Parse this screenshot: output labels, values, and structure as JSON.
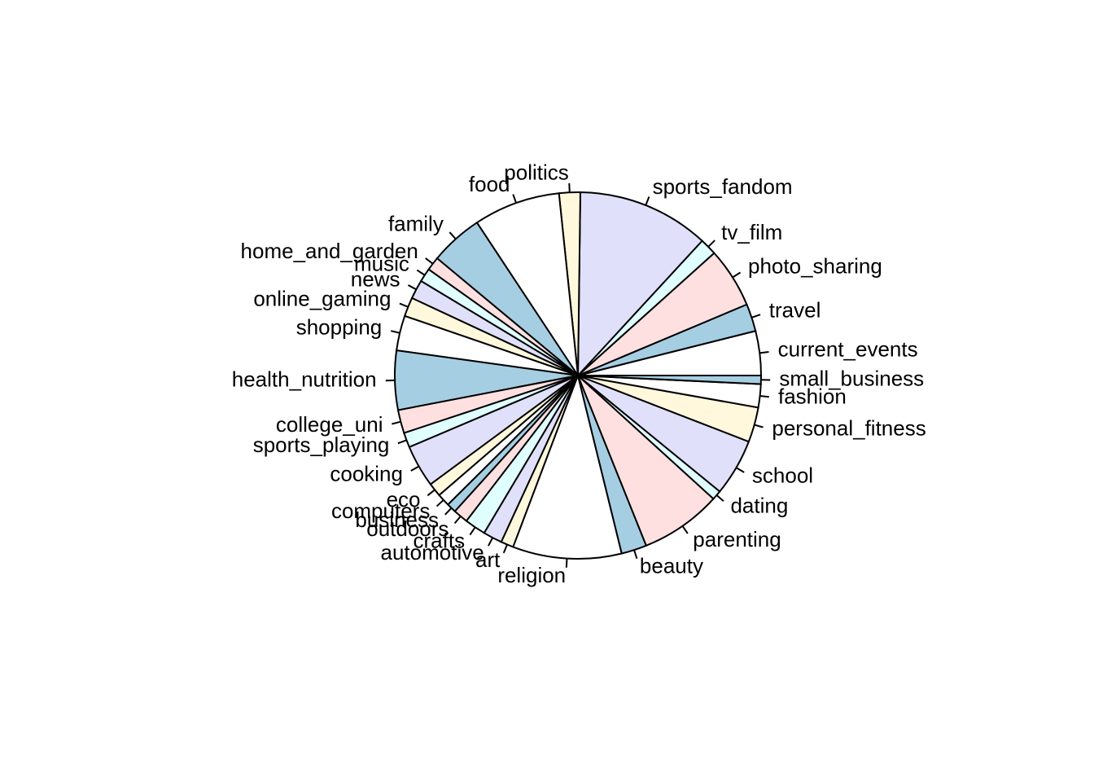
{
  "chart_data": {
    "type": "pie",
    "start_angle_deg": 0,
    "direction": "counterclockwise",
    "colors": [
      "#ffffff",
      "#a6cee3",
      "#fee0e0",
      "#e0ffff",
      "#e0e0fa",
      "#fffadc",
      "#a6cee3",
      "#ffffff",
      "#fee0e0",
      "#e0ffff",
      "#e0e0fa",
      "#fffadc"
    ],
    "palette_cycle": [
      "#ffffff",
      "#a6cee3",
      "#ffe0e0",
      "#e0ffff",
      "#e0e0fa",
      "#fff8dc"
    ],
    "slices": [
      {
        "label": "current_events",
        "value": 4.2
      },
      {
        "label": "travel",
        "value": 2.6
      },
      {
        "label": "photo_sharing",
        "value": 5.7
      },
      {
        "label": "tv_film",
        "value": 1.6
      },
      {
        "label": "sports_fandom",
        "value": 12.5
      },
      {
        "label": "politics",
        "value": 2.0
      },
      {
        "label": "food",
        "value": 8.2
      },
      {
        "label": "family",
        "value": 5.0
      },
      {
        "label": "home_and_garden",
        "value": 1.3
      },
      {
        "label": "music",
        "value": 1.3
      },
      {
        "label": "news",
        "value": 1.8
      },
      {
        "label": "online_gaming",
        "value": 1.8
      },
      {
        "label": "shopping",
        "value": 3.3
      },
      {
        "label": "health_nutrition",
        "value": 5.6
      },
      {
        "label": "college_uni",
        "value": 2.2
      },
      {
        "label": "sports_playing",
        "value": 1.4
      },
      {
        "label": "cooking",
        "value": 4.0
      },
      {
        "label": "eco",
        "value": 1.3
      },
      {
        "label": "computers",
        "value": 1.2
      },
      {
        "label": "business",
        "value": 0.9
      },
      {
        "label": "outdoors",
        "value": 1.4
      },
      {
        "label": "crafts",
        "value": 2.0
      },
      {
        "label": "automotive",
        "value": 1.8
      },
      {
        "label": "art",
        "value": 1.2
      },
      {
        "label": "religion",
        "value": 10.3
      },
      {
        "label": "beauty",
        "value": 2.4
      },
      {
        "label": "parenting",
        "value": 7.7
      },
      {
        "label": "dating",
        "value": 0.9
      },
      {
        "label": "school",
        "value": 5.4
      },
      {
        "label": "personal_fitness",
        "value": 3.3
      },
      {
        "label": "fashion",
        "value": 2.2
      },
      {
        "label": "small_business",
        "value": 0.8
      }
    ]
  }
}
